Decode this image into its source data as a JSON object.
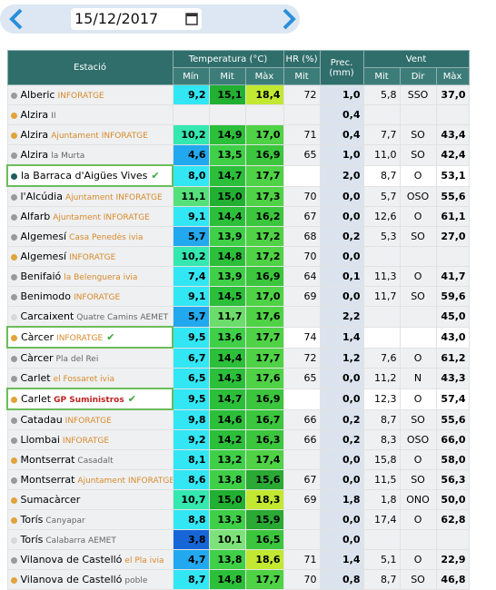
{
  "date": "15/12/2017",
  "table": {
    "header": {
      "station": "Estació",
      "temperature": "Temperatura (°C)",
      "humidity": "HR (%)",
      "precipitation": "Prec. (mm)",
      "wind": "Vent",
      "sub": [
        "Mín",
        "Mit",
        "Màx",
        "Mit",
        "Mit",
        "Dir",
        "Màx"
      ]
    },
    "rows": [
      {
        "dot": "#9a9a9a",
        "name": "Alberic",
        "source": "INFORATGE",
        "cells": [
          "9,2",
          "15,1",
          "18,4",
          "72",
          "1,0",
          "5,8",
          "SSO",
          "37,0"
        ]
      },
      {
        "dot": "#e0a43a",
        "name": "Alzira",
        "source": "II",
        "cells": [
          null,
          null,
          null,
          null,
          "0,4",
          null,
          null,
          null
        ]
      },
      {
        "dot": "#e0a43a",
        "name": "Alzira",
        "source": "Ajuntament INFORATGE",
        "cells": [
          "10,2",
          "14,9",
          "17,0",
          "71",
          "0,4",
          "7,7",
          "SO",
          "43,4"
        ]
      },
      {
        "dot": "#9a9a9a",
        "name": "Alzira",
        "source": "la Murta",
        "cells": [
          "4,6",
          "13,5",
          "16,9",
          "65",
          "1,0",
          "11,0",
          "SO",
          "42,4"
        ]
      },
      {
        "dot": "#1f5f5e",
        "name": "la Barraca d'Aigües Vives",
        "source": null,
        "verified": true,
        "cells": [
          "8,0",
          "14,7",
          "17,7",
          null,
          "2,0",
          "8,7",
          "O",
          "53,1"
        ]
      },
      {
        "dot": "#9a9a9a",
        "name": "l'Alcúdia",
        "source": "Ajuntament INFORATGE",
        "cells": [
          "11,1",
          "15,0",
          "17,3",
          "70",
          "0,0",
          "5,7",
          "OSO",
          "55,6"
        ]
      },
      {
        "dot": "#9a9a9a",
        "name": "Alfarb",
        "source": "Ajuntament INFORATGE",
        "cells": [
          "9,1",
          "14,4",
          "16,2",
          "67",
          "0,0",
          "12,6",
          "O",
          "61,1"
        ]
      },
      {
        "dot": "#9a9a9a",
        "name": "Algemesí",
        "source": "Casa Penedès ivia",
        "cells": [
          "5,7",
          "13,9",
          "17,2",
          "68",
          "0,2",
          "5,3",
          "SO",
          "27,0"
        ]
      },
      {
        "dot": "#e0a43a",
        "name": "Algemesí",
        "source": "INFORATGE",
        "cells": [
          "10,2",
          "14,8",
          "17,2",
          "70",
          "0,0",
          null,
          null,
          null
        ]
      },
      {
        "dot": "#9a9a9a",
        "name": "Benifaió",
        "source": "la Belenguera ivia",
        "cells": [
          "7,4",
          "13,9",
          "16,9",
          "64",
          "0,1",
          "11,3",
          "O",
          "41,7"
        ]
      },
      {
        "dot": "#9a9a9a",
        "name": "Benimodo",
        "source": "INFORATGE",
        "cells": [
          "9,1",
          "14,5",
          "17,0",
          "69",
          "0,0",
          "11,7",
          "SO",
          "59,6"
        ]
      },
      {
        "dot": "#d8d8d8",
        "name": "Carcaixent",
        "source": "Quatre Camins AEMET",
        "cells": [
          "5,7",
          "11,7",
          "17,6",
          null,
          "2,2",
          null,
          null,
          "45,0"
        ]
      },
      {
        "dot": "#e0a43a",
        "name": "Càrcer",
        "source": "INFORATGE",
        "verified": true,
        "cells": [
          "9,5",
          "13,6",
          "17,7",
          "74",
          "1,4",
          null,
          null,
          "43,0"
        ]
      },
      {
        "dot": "#9a9a9a",
        "name": "Càrcer",
        "source": "Pla del Rei",
        "cells": [
          "6,7",
          "14,4",
          "17,7",
          "72",
          "1,2",
          "7,6",
          "O",
          "61,2"
        ]
      },
      {
        "dot": "#9a9a9a",
        "name": "Carlet",
        "source": "el Fossaret ivia",
        "cells": [
          "6,5",
          "14,3",
          "17,6",
          "65",
          "0,0",
          "11,2",
          "N",
          "43,3"
        ]
      },
      {
        "dot": "#e0a43a",
        "name": "Carlet",
        "source": "GP Suministros",
        "verified": true,
        "cells": [
          "9,5",
          "14,7",
          "16,9",
          null,
          "0,0",
          "12,3",
          "O",
          "57,4"
        ]
      },
      {
        "dot": "#9a9a9a",
        "name": "Catadau",
        "source": "INFORATGE",
        "cells": [
          "9,8",
          "14,6",
          "16,7",
          "66",
          "0,2",
          "8,7",
          "SO",
          "55,6"
        ]
      },
      {
        "dot": "#9a9a9a",
        "name": "Llombai",
        "source": "INFORATGE",
        "cells": [
          "9,2",
          "14,2",
          "16,3",
          "66",
          "0,2",
          "8,3",
          "OSO",
          "66,0"
        ]
      },
      {
        "dot": "#e0a43a",
        "name": "Montserrat",
        "source": "Casadalt",
        "cells": [
          "8,1",
          "13,2",
          "17,4",
          null,
          "0,0",
          "15,8",
          "O",
          "58,0"
        ]
      },
      {
        "dot": "#9a9a9a",
        "name": "Montserrat",
        "source": "Ajuntament INFORATGE",
        "cells": [
          "8,6",
          "13,8",
          "15,6",
          "67",
          "0,0",
          "11,5",
          "SO",
          "56,3"
        ]
      },
      {
        "dot": "#e0a43a",
        "name": "Sumacàrcer",
        "source": null,
        "cells": [
          "10,7",
          "15,0",
          "18,3",
          "69",
          "1,8",
          "1,8",
          "ONO",
          "50,0"
        ]
      },
      {
        "dot": "#e0a43a",
        "name": "Torís",
        "source": "Canyapar",
        "cells": [
          "8,8",
          "13,3",
          "15,9",
          null,
          "0,0",
          "17,4",
          "O",
          "62,8"
        ]
      },
      {
        "dot": "#d8d8d8",
        "name": "Torís",
        "source": "Calabarra AEMET",
        "cells": [
          "3,8",
          "10,1",
          "16,5",
          null,
          "0,0",
          null,
          null,
          null
        ]
      },
      {
        "dot": "#9a9a9a",
        "name": "Vilanova de Castelló",
        "source": "el Pla ivia",
        "cells": [
          "4,7",
          "13,8",
          "18,6",
          "71",
          "1,4",
          "5,1",
          "O",
          "22,9"
        ]
      },
      {
        "dot": "#e0a43a",
        "name": "Vilanova de Castelló",
        "source": "poble",
        "cells": [
          "8,7",
          "14,8",
          "17,7",
          "70",
          "0,8",
          "8,7",
          "SO",
          "46,8"
        ]
      }
    ]
  }
}
